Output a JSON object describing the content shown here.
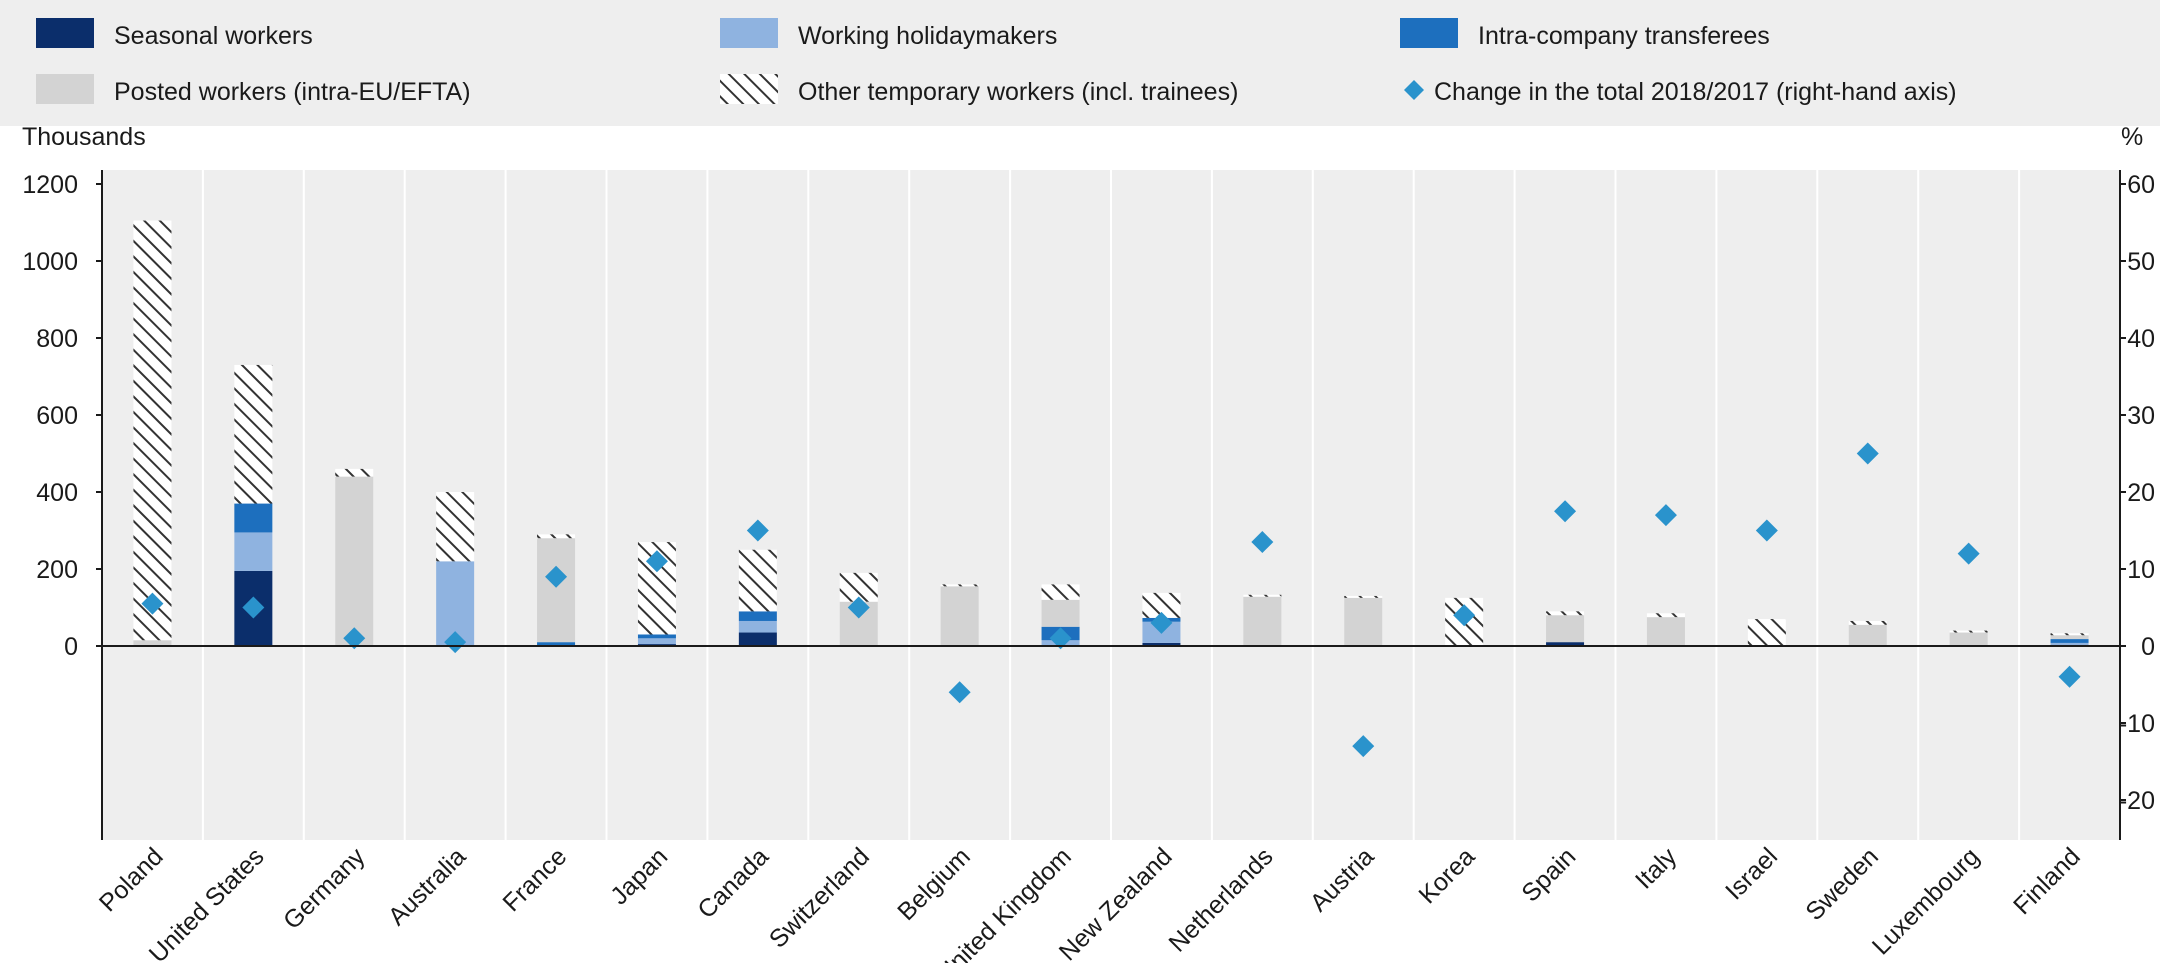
{
  "chart_data": {
    "type": "bar",
    "stacked": true,
    "y_unit_left": "Thousands",
    "y_unit_right": "%",
    "ylim_left": [
      -400,
      1200
    ],
    "ylim_right": [
      -20,
      60
    ],
    "yticks_left": [
      "0",
      "200",
      "400",
      "600",
      "800",
      "1000",
      "1200"
    ],
    "yticks_right": [
      "-20",
      "-10",
      "0",
      "10",
      "20",
      "30",
      "40",
      "50",
      "60"
    ],
    "categories": [
      "Poland",
      "United States",
      "Germany",
      "Australia",
      "France",
      "Japan",
      "Canada",
      "Switzerland",
      "Belgium",
      "United Kingdom",
      "New Zealand",
      "Netherlands",
      "Austria",
      "Korea",
      "Spain",
      "Italy",
      "Israel",
      "Sweden",
      "Luxembourg",
      "Finland"
    ],
    "series": [
      {
        "name": "Seasonal workers",
        "color": "#0b2e6b",
        "pattern": "solid",
        "values": [
          0,
          195,
          0,
          0,
          0,
          5,
          35,
          0,
          0,
          0,
          8,
          0,
          0,
          0,
          10,
          0,
          0,
          0,
          0,
          3
        ]
      },
      {
        "name": "Working holidaymakers",
        "color": "#8fb3e0",
        "pattern": "solid",
        "values": [
          0,
          100,
          0,
          220,
          0,
          15,
          30,
          0,
          0,
          15,
          55,
          0,
          0,
          0,
          0,
          0,
          0,
          0,
          0,
          5
        ]
      },
      {
        "name": "Intra-company transferees",
        "color": "#1d6fbe",
        "pattern": "solid",
        "values": [
          0,
          75,
          0,
          0,
          10,
          10,
          25,
          0,
          0,
          35,
          10,
          0,
          0,
          0,
          0,
          0,
          0,
          0,
          0,
          10
        ]
      },
      {
        "name": "Posted workers (intra-EU/EFTA)",
        "color": "#d3d3d3",
        "pattern": "solid",
        "values": [
          15,
          0,
          440,
          0,
          270,
          0,
          0,
          115,
          155,
          70,
          0,
          128,
          125,
          0,
          70,
          75,
          0,
          55,
          35,
          10
        ]
      },
      {
        "name": "Other temporary workers (incl. trainees)",
        "color": "#333333",
        "pattern": "hatch",
        "values": [
          1090,
          360,
          20,
          180,
          10,
          240,
          160,
          75,
          5,
          40,
          65,
          5,
          5,
          125,
          10,
          10,
          70,
          10,
          5,
          5
        ]
      }
    ],
    "change_series": {
      "name": "Change in the total 2018/2017 (right-hand axis)",
      "color": "#2a93cc",
      "values": [
        5.5,
        5,
        1,
        0.5,
        9,
        11,
        15,
        5,
        -6,
        1,
        3,
        13.5,
        -13,
        4,
        17.5,
        17,
        15,
        25,
        12,
        -4
      ]
    },
    "legend_position": "top",
    "grid": false
  }
}
